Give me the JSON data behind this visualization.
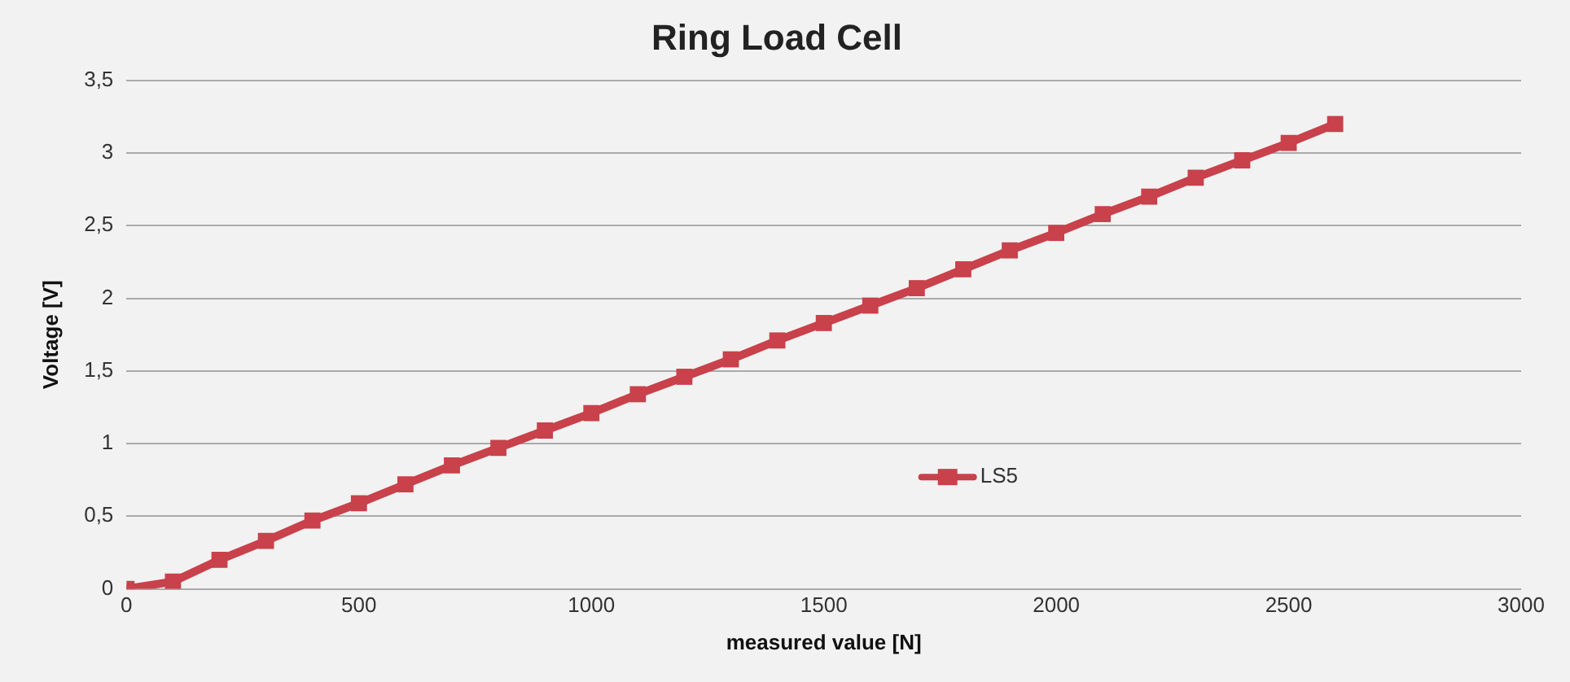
{
  "chart_data": {
    "type": "line",
    "title": "Ring Load Cell",
    "xlabel": "measured value [N]",
    "ylabel": "Voltage [V]",
    "x": [
      0,
      100,
      200,
      300,
      400,
      500,
      600,
      700,
      800,
      900,
      1000,
      1100,
      1200,
      1300,
      1400,
      1500,
      1600,
      1700,
      1800,
      1900,
      2000,
      2100,
      2200,
      2300,
      2400,
      2500,
      2600
    ],
    "series": [
      {
        "name": "LS5",
        "color": "#c8414b",
        "values": [
          0,
          0.05,
          0.2,
          0.33,
          0.47,
          0.59,
          0.72,
          0.85,
          0.97,
          1.09,
          1.21,
          1.34,
          1.46,
          1.58,
          1.71,
          1.83,
          1.95,
          2.07,
          2.2,
          2.33,
          2.45,
          2.58,
          2.7,
          2.83,
          2.95,
          3.07,
          3.2
        ]
      }
    ],
    "xlim": [
      0,
      3000
    ],
    "xticks": [
      0,
      500,
      1000,
      1500,
      2000,
      2500,
      3000
    ],
    "ylim": [
      0,
      3.5
    ],
    "yticks": [
      0,
      {
        "value": 0.5,
        "label": "0,5"
      },
      1,
      {
        "value": 1.5,
        "label": "1,5"
      },
      2,
      {
        "value": 2.5,
        "label": "2,5"
      },
      3,
      {
        "value": 3.5,
        "label": "3,5"
      }
    ],
    "grid": "y",
    "legend": "bottom",
    "marker": "square",
    "line_style": "solid"
  }
}
